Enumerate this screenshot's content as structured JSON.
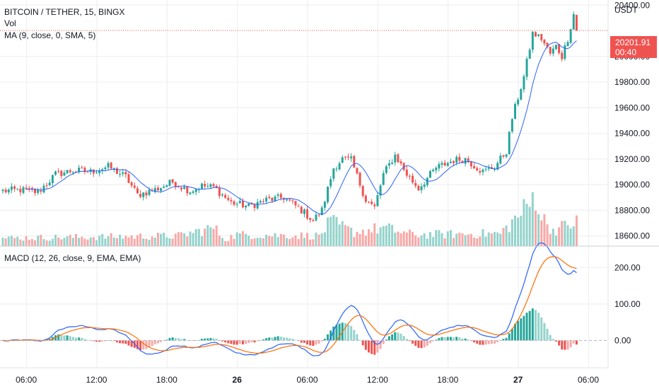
{
  "header": {
    "symbol_line": "BITCOIN / TETHER, 15, BINGX",
    "vol_label": "Vol",
    "ma_label": "MA (9, close, 0, SMA, 5)",
    "macd_label": "MACD (12, 26, close, 9, EMA, EMA)"
  },
  "price_scale": {
    "currency": "USDT",
    "last_price": "20201.91",
    "countdown": "00:40"
  },
  "colors": {
    "up": "#26a69a",
    "down": "#ef5350",
    "up_volume": "#94d3cc",
    "down_volume": "#f7a9a7",
    "ma": "#2962ff",
    "macd_line": "#2962ff",
    "signal_line": "#ff6d00",
    "grid": "#eceef2",
    "text": "#131722"
  },
  "chart_data": [
    {
      "type": "candlestick",
      "title": "BITCOIN / TETHER, 15, BINGX",
      "y_ticks": [
        {
          "value": 18600,
          "label": "18600.00"
        },
        {
          "value": 18800,
          "label": "18800.00"
        },
        {
          "value": 19000,
          "label": "19000.00"
        },
        {
          "value": 19200,
          "label": "19200.00"
        },
        {
          "value": 19400,
          "label": "19400.00"
        },
        {
          "value": 19600,
          "label": "19600.00"
        },
        {
          "value": 19800,
          "label": "19800.00"
        },
        {
          "value": 20000,
          "label": "20000.00"
        },
        {
          "value": 20400,
          "label": "20400.00"
        }
      ],
      "ylim": [
        18520,
        20440
      ],
      "x_ticks": [
        {
          "bar": 8,
          "label": "06:00",
          "bold": false
        },
        {
          "bar": 32,
          "label": "12:00",
          "bold": false
        },
        {
          "bar": 56,
          "label": "18:00",
          "bold": false
        },
        {
          "bar": 80,
          "label": "26",
          "bold": true
        },
        {
          "bar": 104,
          "label": "06:00",
          "bold": false
        },
        {
          "bar": 128,
          "label": "12:00",
          "bold": false
        },
        {
          "bar": 152,
          "label": "18:00",
          "bold": false
        },
        {
          "bar": 176,
          "label": "27",
          "bold": true
        },
        {
          "bar": 200,
          "label": "06:00",
          "bold": false
        }
      ],
      "last_price": 20201.91,
      "close_path": [
        [
          0,
          18950
        ],
        [
          6,
          18960
        ],
        [
          12,
          18940
        ],
        [
          18,
          19080
        ],
        [
          24,
          19110
        ],
        [
          30,
          19100
        ],
        [
          36,
          19140
        ],
        [
          42,
          19060
        ],
        [
          46,
          18920
        ],
        [
          52,
          18960
        ],
        [
          58,
          19020
        ],
        [
          64,
          18950
        ],
        [
          68,
          18990
        ],
        [
          72,
          18980
        ],
        [
          78,
          18860
        ],
        [
          84,
          18830
        ],
        [
          90,
          18880
        ],
        [
          96,
          18900
        ],
        [
          102,
          18800
        ],
        [
          106,
          18720
        ],
        [
          109,
          18800
        ],
        [
          113,
          19130
        ],
        [
          116,
          19200
        ],
        [
          119,
          19190
        ],
        [
          124,
          18880
        ],
        [
          127,
          18820
        ],
        [
          130,
          19080
        ],
        [
          134,
          19230
        ],
        [
          138,
          19080
        ],
        [
          142,
          18970
        ],
        [
          148,
          19130
        ],
        [
          154,
          19190
        ],
        [
          158,
          19200
        ],
        [
          164,
          19100
        ],
        [
          168,
          19140
        ],
        [
          172,
          19260
        ],
        [
          174,
          19520
        ],
        [
          178,
          19840
        ],
        [
          181,
          20180
        ],
        [
          184,
          20140
        ],
        [
          187,
          20020
        ],
        [
          189,
          20080
        ],
        [
          191,
          20000
        ],
        [
          193,
          20140
        ],
        [
          195,
          20330
        ],
        [
          196,
          20202
        ]
      ],
      "volume_path": [
        [
          0,
          0.14
        ],
        [
          30,
          0.16
        ],
        [
          60,
          0.18
        ],
        [
          72,
          0.32
        ],
        [
          76,
          0.12
        ],
        [
          80,
          0.2
        ],
        [
          108,
          0.18
        ],
        [
          112,
          0.42
        ],
        [
          120,
          0.24
        ],
        [
          130,
          0.32
        ],
        [
          140,
          0.2
        ],
        [
          170,
          0.22
        ],
        [
          176,
          0.52
        ],
        [
          180,
          0.72
        ],
        [
          182,
          0.95
        ],
        [
          184,
          0.5
        ],
        [
          188,
          0.28
        ],
        [
          196,
          0.42
        ]
      ],
      "bar_count": 197
    },
    {
      "type": "line",
      "title": "MACD (12, 26, close, 9, EMA, EMA)",
      "y_ticks": [
        {
          "value": 0,
          "label": "0.00"
        },
        {
          "value": 100,
          "label": "100.00"
        },
        {
          "value": 200,
          "label": "200.00"
        }
      ],
      "ylim": [
        -75,
        255
      ],
      "series": [
        {
          "name": "MACD",
          "color_key": "macd_line"
        },
        {
          "name": "Signal",
          "color_key": "signal_line"
        },
        {
          "name": "Histogram",
          "color_key": "up"
        }
      ]
    }
  ]
}
